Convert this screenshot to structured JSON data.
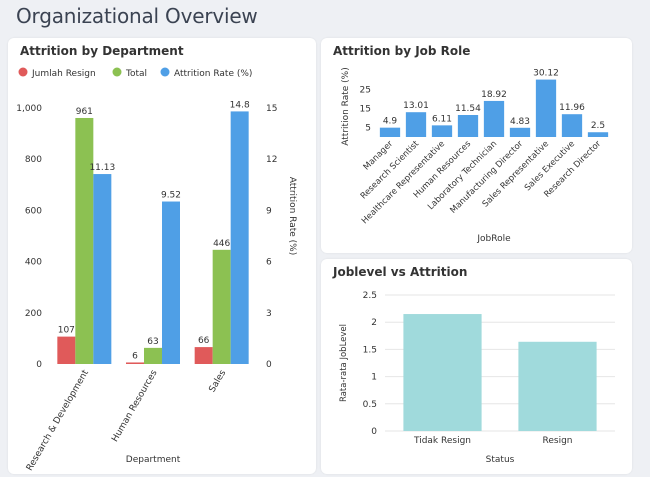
{
  "page": {
    "title": "Organizational Overview"
  },
  "colors": {
    "resign": "#e05a5a",
    "total": "#8cc152",
    "rate": "#4f9fe6",
    "jobrole": "#4f9fe6",
    "joblevel": "#a0dadc"
  },
  "cards": {
    "department": {
      "title": "Attrition by Department"
    },
    "jobrole": {
      "title": "Attrition by Job Role"
    },
    "joblevel": {
      "title": "Joblevel vs Attrition"
    }
  },
  "chart_data": [
    {
      "type": "bar",
      "title": "Attrition by Department",
      "xlabel": "Department",
      "ylabel": "",
      "y2label": "Attrition Rate (%)",
      "categories": [
        "Research & Development",
        "Human Resources",
        "Sales"
      ],
      "series": [
        {
          "name": "Jumlah Resign",
          "values": [
            107,
            6,
            66
          ],
          "axis": "left"
        },
        {
          "name": "Total",
          "values": [
            961,
            63,
            446
          ],
          "axis": "left"
        },
        {
          "name": "Attrition Rate (%)",
          "values": [
            11.13,
            9.52,
            14.8
          ],
          "axis": "right"
        }
      ],
      "ylim": [
        0,
        1000
      ],
      "yticks": [
        0,
        200,
        400,
        600,
        800,
        1000
      ],
      "ytick_labels": [
        "0",
        "200",
        "400",
        "600",
        "800",
        "1,000"
      ],
      "y2lim": [
        0,
        15
      ],
      "y2ticks": [
        0,
        3,
        6,
        9,
        12,
        15
      ],
      "legend": "top-left",
      "grid": false
    },
    {
      "type": "bar",
      "title": "Attrition by Job Role",
      "xlabel": "JobRole",
      "ylabel": "Attrition Rate (%)",
      "categories": [
        "Manager",
        "Research Scientist",
        "Healthcare Representative",
        "Human Resources",
        "Laboratory Technician",
        "Manufacturing Director",
        "Sales Representative",
        "Sales Executive",
        "Research Director"
      ],
      "values": [
        4.9,
        13.01,
        6.11,
        11.54,
        18.92,
        4.83,
        30.12,
        11.96,
        2.5
      ],
      "ylim": [
        0,
        32
      ],
      "yticks": [
        5,
        15,
        25
      ],
      "grid": false
    },
    {
      "type": "bar",
      "title": "Joblevel vs Attrition",
      "xlabel": "Status",
      "ylabel": "Rata-rata JobLevel",
      "categories": [
        "Tidak Resign",
        "Resign"
      ],
      "values": [
        2.15,
        1.64
      ],
      "ylim": [
        0,
        2.5
      ],
      "yticks": [
        0,
        0.5,
        1,
        1.5,
        2,
        2.5
      ],
      "grid": true
    }
  ]
}
